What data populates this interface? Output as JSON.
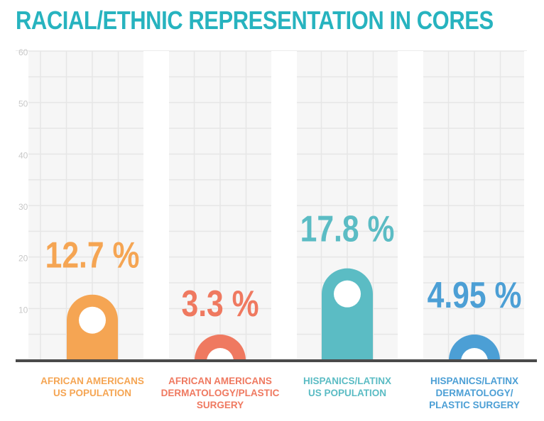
{
  "title": "RACIAL/ETHNIC REPRESENTATION IN CORES",
  "chart_data": {
    "type": "bar",
    "title": "RACIAL/ETHNIC REPRESENTATION IN CORES",
    "ylim": [
      0,
      60
    ],
    "yticks": [
      10,
      20,
      30,
      40,
      50,
      60
    ],
    "grid": true,
    "categories": [
      [
        "AFRICAN AMERICANS",
        "US POPULATION"
      ],
      [
        "AFRICAN AMERICANS",
        "DERMATOLOGY/PLASTIC",
        "SURGERY"
      ],
      [
        "HISPANICS/LATINX",
        "US POPULATION"
      ],
      [
        "HISPANICS/LATINX",
        "DERMATOLOGY/",
        "PLASTIC SURGERY"
      ]
    ],
    "values": [
      12.7,
      3.3,
      17.8,
      4.95
    ],
    "value_labels": [
      "12.7 %",
      "3.3 %",
      "17.8 %",
      "4.95 %"
    ],
    "colors": [
      "#f5a553",
      "#ef7960",
      "#5bbcc4",
      "#4c9fd5"
    ]
  }
}
